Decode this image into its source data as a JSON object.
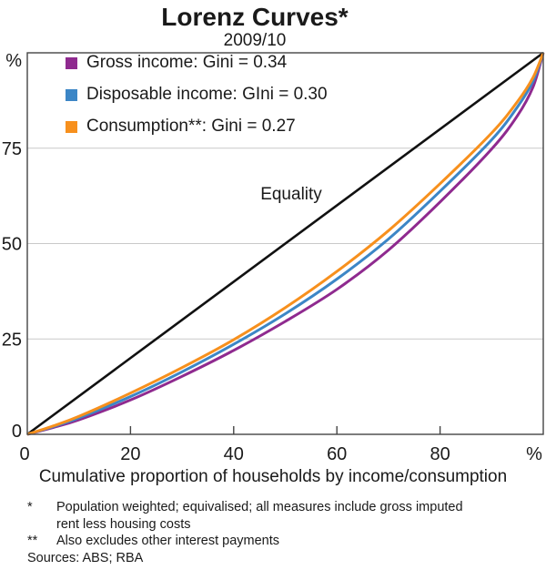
{
  "title": "Lorenz Curves*",
  "subtitle": "2009/10",
  "legend": {
    "items": [
      {
        "label": "Gross income: Gini = 0.34",
        "color": "#8F2A8F"
      },
      {
        "label": "Disposable income: GIni = 0.30",
        "color": "#3C86C6"
      },
      {
        "label": "Consumption**: Gini = 0.27",
        "color": "#F7901D"
      }
    ]
  },
  "equality_label": "Equality",
  "xlabel": "Cumulative proportion of households by income/consumption",
  "footnotes": [
    {
      "marker": "*",
      "text": "Population weighted; equivalised; all measures include gross imputed rent less housing costs"
    },
    {
      "marker": "**",
      "text": "Also excludes other interest payments"
    }
  ],
  "sources": "Sources: ABS; RBA",
  "colors": {
    "frame": "#444444",
    "gridline": "#c9c9c9",
    "equality_line": "#111111",
    "gross_income": "#8F2A8F",
    "disposable_income": "#3C86C6",
    "consumption": "#F7901D"
  },
  "chart_data": {
    "type": "line",
    "title": "Lorenz Curves*",
    "subtitle": "2009/10",
    "xlabel": "Cumulative proportion of households by income/consumption",
    "ylabel": "%",
    "xlim": [
      0,
      100
    ],
    "ylim": [
      0,
      100
    ],
    "grid": "horizontal only",
    "legend_position": "top-left inside plot",
    "xticks": [
      {
        "value": 0,
        "label": "0",
        "tick": false
      },
      {
        "value": 20,
        "label": "20",
        "tick": true
      },
      {
        "value": 40,
        "label": "40",
        "tick": true
      },
      {
        "value": 60,
        "label": "60",
        "tick": true
      },
      {
        "value": 80,
        "label": "80",
        "tick": true
      },
      {
        "value": 100,
        "label": "%",
        "tick": false
      }
    ],
    "yticks": [
      {
        "value": 0,
        "label": "0"
      },
      {
        "value": 25,
        "label": "25"
      },
      {
        "value": 50,
        "label": "50"
      },
      {
        "value": 75,
        "label": "75"
      },
      {
        "value": 100,
        "label": "%"
      }
    ],
    "gridlines_y": [
      25,
      50,
      75
    ],
    "series": [
      {
        "id": "equality",
        "name": "Equality",
        "gini": null,
        "color": "#111111",
        "width": 2.6,
        "points": [
          [
            0,
            0
          ],
          [
            100,
            100
          ]
        ]
      },
      {
        "id": "gross-income",
        "name": "Gross income",
        "gini": 0.34,
        "color": "#8F2A8F",
        "width": 3,
        "points": [
          [
            0,
            0
          ],
          [
            5,
            1.8
          ],
          [
            10,
            3.8
          ],
          [
            20,
            9.0
          ],
          [
            30,
            15.2
          ],
          [
            40,
            22.0
          ],
          [
            50,
            29.6
          ],
          [
            60,
            38.0
          ],
          [
            70,
            48.3
          ],
          [
            80,
            60.9
          ],
          [
            90,
            74.8
          ],
          [
            95,
            83.5
          ],
          [
            98,
            91.0
          ],
          [
            100,
            100
          ]
        ]
      },
      {
        "id": "disposable-income",
        "name": "Disposable income",
        "gini": 0.3,
        "color": "#3C86C6",
        "width": 3,
        "points": [
          [
            0,
            0
          ],
          [
            5,
            2.0
          ],
          [
            10,
            4.3
          ],
          [
            20,
            9.9
          ],
          [
            30,
            16.4
          ],
          [
            40,
            23.6
          ],
          [
            50,
            31.6
          ],
          [
            60,
            40.7
          ],
          [
            70,
            51.2
          ],
          [
            80,
            63.7
          ],
          [
            90,
            77.2
          ],
          [
            95,
            85.8
          ],
          [
            98,
            92.5
          ],
          [
            100,
            100
          ]
        ]
      },
      {
        "id": "consumption",
        "name": "Consumption",
        "gini": 0.27,
        "color": "#F7901D",
        "width": 3,
        "points": [
          [
            0,
            0
          ],
          [
            5,
            2.2
          ],
          [
            10,
            4.7
          ],
          [
            20,
            10.8
          ],
          [
            30,
            17.5
          ],
          [
            40,
            24.8
          ],
          [
            50,
            33.2
          ],
          [
            60,
            42.7
          ],
          [
            70,
            53.4
          ],
          [
            80,
            65.7
          ],
          [
            90,
            79.0
          ],
          [
            95,
            87.2
          ],
          [
            98,
            93.5
          ],
          [
            100,
            100
          ]
        ]
      }
    ]
  }
}
